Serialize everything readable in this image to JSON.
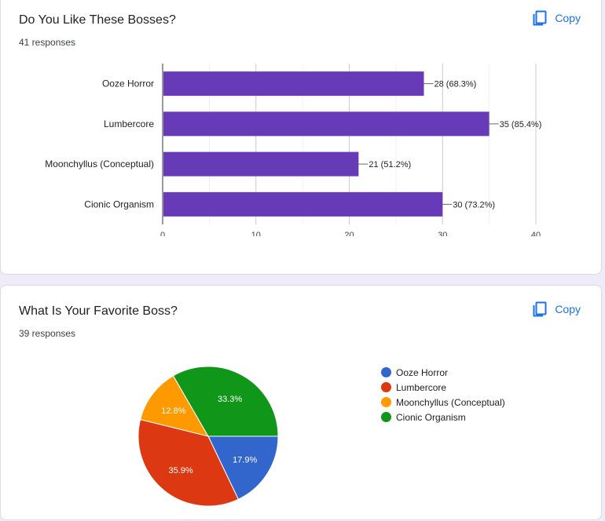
{
  "cards": [
    {
      "title": "Do You Like These Bosses?",
      "responses": "41 responses",
      "copy_label": "Copy"
    },
    {
      "title": "What Is Your Favorite Boss?",
      "responses": "39 responses",
      "copy_label": "Copy"
    }
  ],
  "icons": {
    "copy": "copy-icon"
  },
  "colors": {
    "bar": "#673ab7",
    "accent": "#1a73e8"
  },
  "chart_data": [
    {
      "type": "bar",
      "orientation": "horizontal",
      "categories": [
        "Ooze Horror",
        "Lumbercore",
        "Moonchyllus (Conceptual)",
        "Cionic Organism"
      ],
      "values": [
        28,
        35,
        21,
        30
      ],
      "data_labels": [
        "28 (68.3%)",
        "35 (85.4%)",
        "21 (51.2%)",
        "30 (73.2%)"
      ],
      "xlim": [
        0,
        40
      ],
      "xticks": [
        0,
        10,
        20,
        30,
        40
      ],
      "grid": true,
      "color": "#673ab7"
    },
    {
      "type": "pie",
      "labels": [
        "Ooze Horror",
        "Lumbercore",
        "Moonchyllus (Conceptual)",
        "Cionic Organism"
      ],
      "values": [
        17.9,
        35.9,
        12.8,
        33.3
      ],
      "slice_labels": [
        "17.9%",
        "35.9%",
        "12.8%",
        "33.3%"
      ],
      "colors": [
        "#3366cc",
        "#dc3912",
        "#ff9900",
        "#109618"
      ],
      "legend": "right"
    }
  ]
}
